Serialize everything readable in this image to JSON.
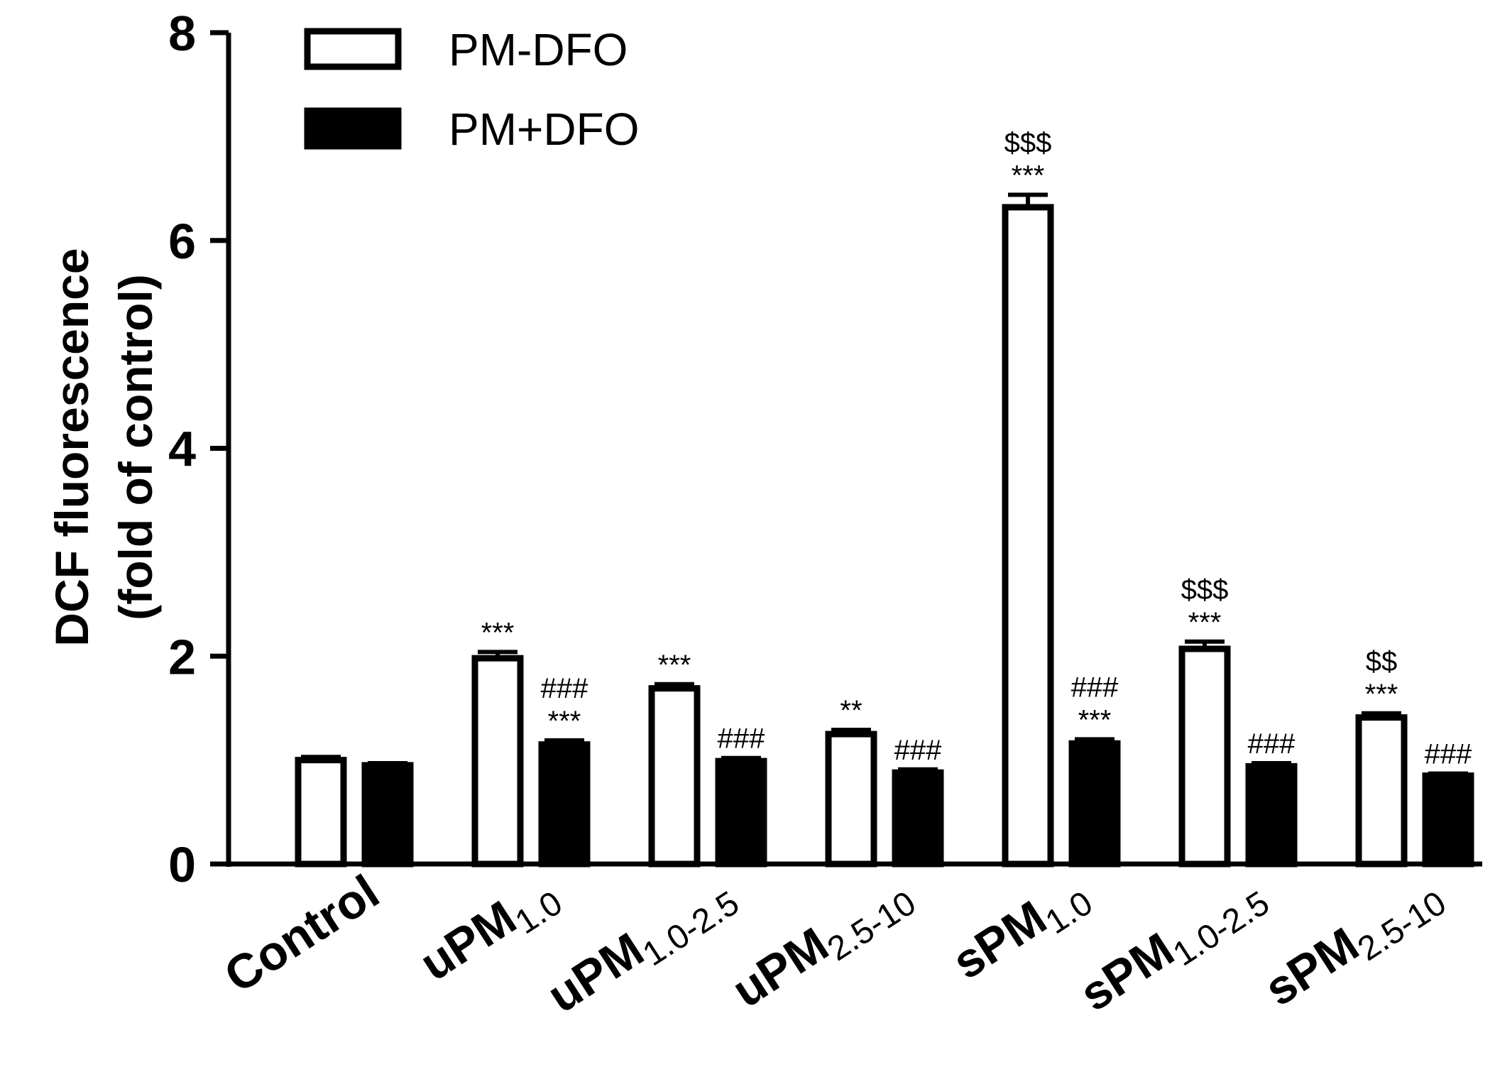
{
  "chart_data": {
    "type": "bar",
    "ylabel_lines": [
      "DCF fluorescence",
      "(fold of control)"
    ],
    "ylim": [
      0,
      8
    ],
    "yticks": [
      "0",
      "2",
      "4",
      "6",
      "8"
    ],
    "categories": [
      {
        "base": "Control",
        "sub": ""
      },
      {
        "base": "uPM",
        "sub": "1.0"
      },
      {
        "base": "uPM",
        "sub": "1.0-2.5"
      },
      {
        "base": "uPM",
        "sub": "2.5-10"
      },
      {
        "base": "sPM",
        "sub": "1.0"
      },
      {
        "base": "sPM",
        "sub": "1.0-2.5"
      },
      {
        "base": "sPM",
        "sub": "2.5-10"
      }
    ],
    "series": [
      {
        "name": "PM-DFO",
        "style": "open",
        "values": [
          1.0,
          1.98,
          1.69,
          1.25,
          6.32,
          2.07,
          1.41
        ],
        "errors": [
          0.03,
          0.06,
          0.04,
          0.04,
          0.12,
          0.07,
          0.04
        ],
        "annotations": [
          [],
          [
            "***"
          ],
          [
            "***"
          ],
          [
            "**"
          ],
          [
            "$$$",
            "***"
          ],
          [
            "$$$",
            "***"
          ],
          [
            "$$",
            "***"
          ]
        ]
      },
      {
        "name": "PM+DFO",
        "style": "filled",
        "values": [
          0.95,
          1.15,
          0.99,
          0.88,
          1.16,
          0.94,
          0.85
        ],
        "errors": [
          0.02,
          0.04,
          0.03,
          0.03,
          0.04,
          0.03,
          0.02
        ],
        "annotations": [
          [],
          [
            "###",
            "***"
          ],
          [
            "###"
          ],
          [
            "###"
          ],
          [
            "###",
            "***"
          ],
          [
            "###"
          ],
          [
            "###"
          ]
        ]
      }
    ],
    "legend_position": "top-left",
    "colors": {
      "open_fill": "#ffffff",
      "filled_fill": "#000000",
      "stroke": "#000000"
    }
  }
}
